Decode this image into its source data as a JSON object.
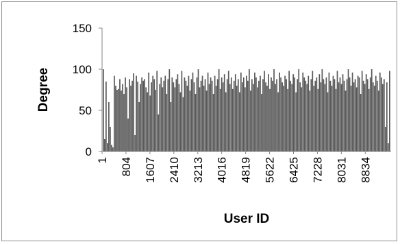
{
  "chart_data": {
    "type": "bar",
    "title": "",
    "xlabel": "User ID",
    "ylabel": "Degree",
    "ylim": [
      0,
      150
    ],
    "yticks": [
      0,
      50,
      100,
      150
    ],
    "xlim": [
      1,
      9700
    ],
    "xticks": [
      1,
      804,
      1607,
      2410,
      3213,
      4016,
      4819,
      5622,
      6425,
      7228,
      8031,
      8834
    ],
    "grid": false,
    "legend": "none",
    "bar_color": "#595959",
    "series": [
      {
        "values": [
          100,
          15,
          85,
          10,
          60,
          30,
          8,
          5,
          92,
          80,
          75,
          76,
          88,
          74,
          82,
          70,
          90,
          78,
          40,
          88,
          80,
          86,
          95,
          20,
          92,
          85,
          60,
          82,
          90,
          86,
          88,
          78,
          72,
          96,
          68,
          84,
          92,
          88,
          75,
          98,
          45,
          82,
          90,
          78,
          86,
          92,
          70,
          88,
          100,
          60,
          90,
          84,
          78,
          88,
          94,
          82,
          72,
          98,
          66,
          90,
          86,
          80,
          92,
          74,
          88,
          96,
          84,
          70,
          90,
          100,
          78,
          86,
          92,
          80,
          88,
          74,
          96,
          82,
          90,
          86,
          70,
          92,
          80,
          88,
          100,
          76,
          90,
          84,
          94,
          72,
          88,
          98,
          82,
          90,
          76,
          86,
          94,
          80,
          88,
          72,
          96,
          84,
          90,
          78,
          92,
          86,
          100,
          74,
          88,
          82,
          96,
          90,
          78,
          86,
          92,
          70,
          88,
          98,
          84,
          80,
          94,
          76,
          90,
          86,
          100,
          82,
          88,
          72,
          96,
          90,
          84,
          80,
          92,
          88,
          76,
          98,
          86,
          82,
          94,
          90,
          72,
          88,
          100,
          84,
          78,
          96,
          90,
          86,
          82,
          92,
          74,
          88,
          98,
          80,
          86,
          90,
          76,
          94,
          84,
          100,
          88,
          82,
          90,
          72,
          96,
          86,
          80,
          92,
          88,
          76,
          98,
          84,
          90,
          82,
          94,
          86,
          74,
          88,
          100,
          90,
          80,
          96,
          84,
          88,
          78,
          92,
          90,
          70,
          98,
          86,
          82,
          94,
          88,
          76,
          90,
          100,
          84,
          80,
          92,
          86,
          74,
          96,
          90,
          82,
          88,
          30,
          84,
          10,
          98
        ]
      }
    ]
  }
}
